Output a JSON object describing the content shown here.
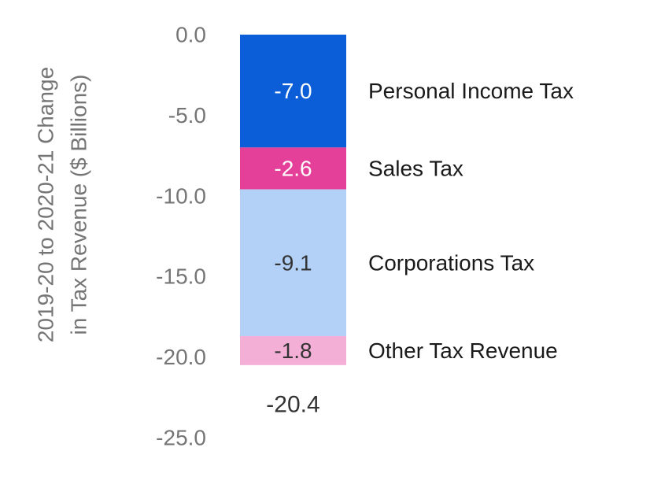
{
  "chart_data": {
    "type": "bar",
    "stacked": true,
    "ylabel_lines": [
      "2019-20 to 2020-21 Change",
      "in Tax Revenue ($ Billions)"
    ],
    "ylim": [
      -25.0,
      0.0
    ],
    "yticks": [
      0.0,
      -5.0,
      -10.0,
      -15.0,
      -20.0,
      -25.0
    ],
    "ytick_labels": [
      "0.0",
      "-5.0",
      "-10.0",
      "-15.0",
      "-20.0",
      "-25.0"
    ],
    "grid": false,
    "legend": "labels placed right of each segment",
    "series": [
      {
        "name": "Personal Income Tax",
        "value": -7.0,
        "label": "-7.0",
        "color": "#0b5ed7",
        "label_color": "#ffffff"
      },
      {
        "name": "Sales Tax",
        "value": -2.6,
        "label": "-2.6",
        "color": "#e4409a",
        "label_color": "#ffffff"
      },
      {
        "name": "Corporations Tax",
        "value": -9.1,
        "label": "-9.1",
        "color": "#b3d1f7",
        "label_color": "#333333"
      },
      {
        "name": "Other Tax Revenue",
        "value": -1.8,
        "label": "-1.8",
        "color": "#f4afd6",
        "label_color": "#333333"
      }
    ],
    "total": {
      "value": -20.4,
      "label": "-20.4"
    }
  }
}
